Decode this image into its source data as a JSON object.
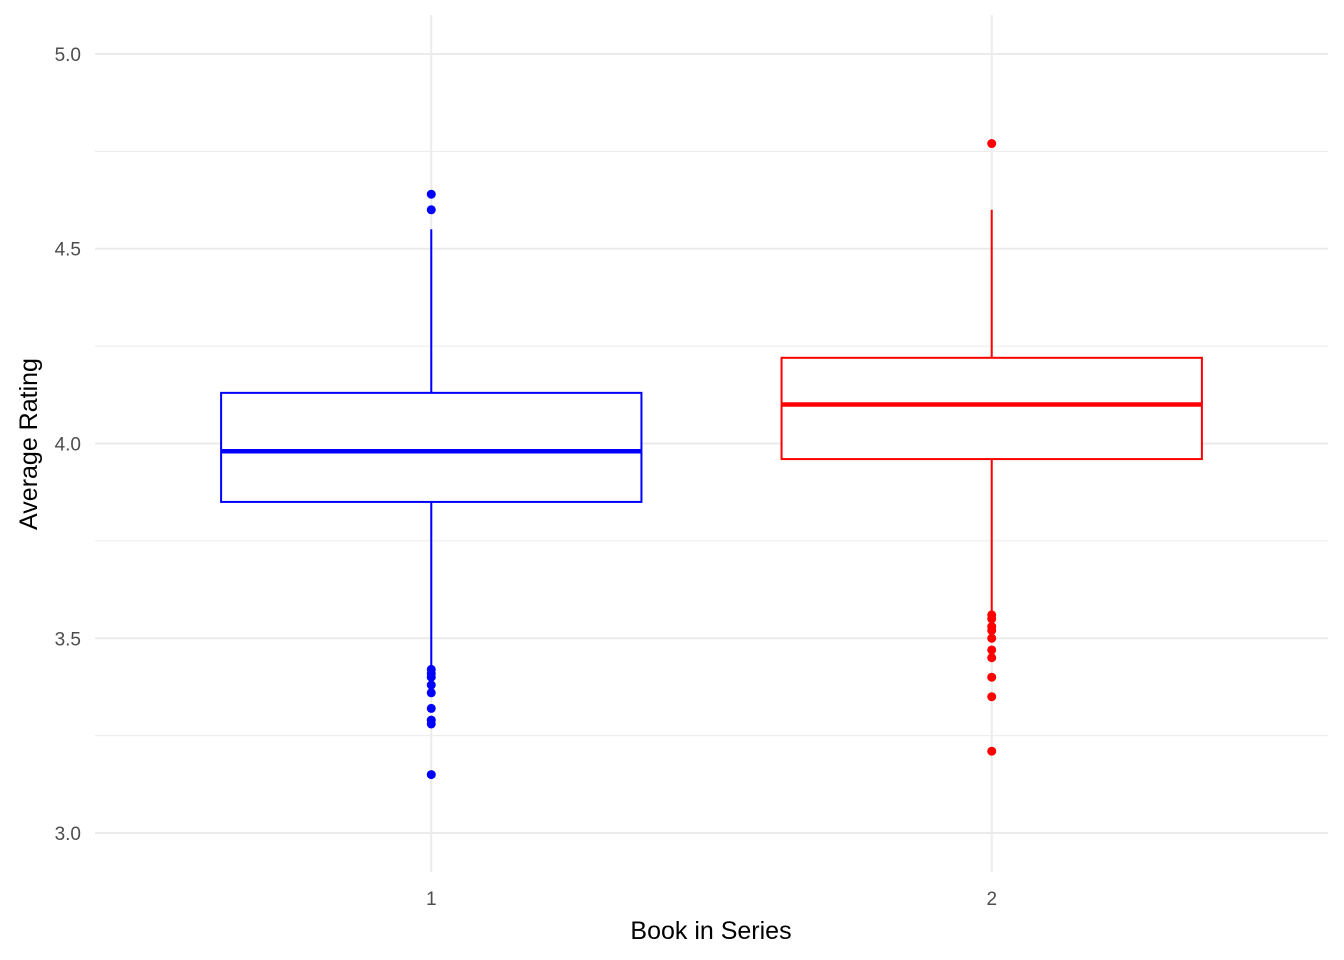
{
  "chart_data": {
    "type": "boxplot",
    "xlabel": "Book in Series",
    "ylabel": "Average Rating",
    "categories": [
      "1",
      "2"
    ],
    "ylim": [
      2.9,
      5.1
    ],
    "yticks": [
      3.0,
      3.5,
      4.0,
      4.5,
      5.0
    ],
    "ytick_labels": [
      "3.0",
      "3.5",
      "4.0",
      "4.5",
      "5.0"
    ],
    "grid": true,
    "legend": "none",
    "boxes": [
      {
        "category": "1",
        "color": "#0000ff",
        "q1": 3.85,
        "median": 3.98,
        "q3": 4.13,
        "whisker_low": 3.43,
        "whisker_high": 4.55,
        "outliers": [
          4.64,
          4.6,
          3.42,
          3.41,
          3.4,
          3.38,
          3.36,
          3.32,
          3.29,
          3.28,
          3.15
        ]
      },
      {
        "category": "2",
        "color": "#ff0000",
        "q1": 3.96,
        "median": 4.1,
        "q3": 4.22,
        "whisker_low": 3.57,
        "whisker_high": 4.6,
        "outliers": [
          4.77,
          3.56,
          3.55,
          3.53,
          3.52,
          3.5,
          3.47,
          3.45,
          3.4,
          3.35,
          3.21
        ]
      }
    ]
  }
}
